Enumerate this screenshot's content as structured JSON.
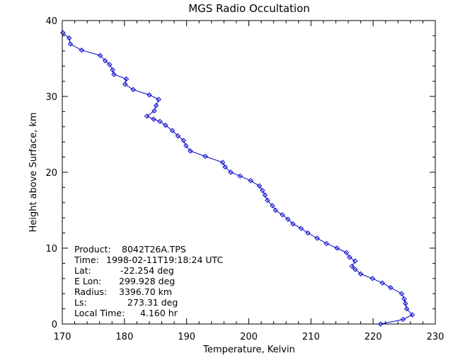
{
  "chart_data": {
    "type": "line",
    "title": "MGS Radio Occultation",
    "xlabel": "Temperature, Kelvin",
    "ylabel": "Height above Surface, km",
    "xlim": [
      170,
      230
    ],
    "ylim": [
      0,
      40
    ],
    "xticks": [
      "170",
      "180",
      "190",
      "200",
      "210",
      "220",
      "230"
    ],
    "yticks": [
      "0",
      "10",
      "20",
      "30",
      "40"
    ],
    "grid": false,
    "line_color": "#0000cc",
    "marker": "diamond",
    "points": [
      [
        221.2,
        0.0
      ],
      [
        224.8,
        0.6
      ],
      [
        226.3,
        1.2
      ],
      [
        225.4,
        2.0
      ],
      [
        225.2,
        2.7
      ],
      [
        225.0,
        3.3
      ],
      [
        224.6,
        4.0
      ],
      [
        222.8,
        4.8
      ],
      [
        221.5,
        5.4
      ],
      [
        219.9,
        6.0
      ],
      [
        218.0,
        6.6
      ],
      [
        217.1,
        7.2
      ],
      [
        216.6,
        7.6
      ],
      [
        217.1,
        8.3
      ],
      [
        216.2,
        8.8
      ],
      [
        215.7,
        9.4
      ],
      [
        214.2,
        10.0
      ],
      [
        212.5,
        10.6
      ],
      [
        211.0,
        11.3
      ],
      [
        209.5,
        12.0
      ],
      [
        208.4,
        12.6
      ],
      [
        207.1,
        13.2
      ],
      [
        206.3,
        13.8
      ],
      [
        205.4,
        14.4
      ],
      [
        204.3,
        15.0
      ],
      [
        203.8,
        15.6
      ],
      [
        203.0,
        16.3
      ],
      [
        202.6,
        17.0
      ],
      [
        202.2,
        17.6
      ],
      [
        201.7,
        18.2
      ],
      [
        200.3,
        18.9
      ],
      [
        198.6,
        19.5
      ],
      [
        197.1,
        20.0
      ],
      [
        196.2,
        20.7
      ],
      [
        195.8,
        21.3
      ],
      [
        193.0,
        22.1
      ],
      [
        190.6,
        22.8
      ],
      [
        189.9,
        23.5
      ],
      [
        189.5,
        24.2
      ],
      [
        188.6,
        24.8
      ],
      [
        187.7,
        25.5
      ],
      [
        186.6,
        26.2
      ],
      [
        185.7,
        26.7
      ],
      [
        184.7,
        27.0
      ],
      [
        183.6,
        27.4
      ],
      [
        184.8,
        28.1
      ],
      [
        185.1,
        28.8
      ],
      [
        185.5,
        29.6
      ],
      [
        184.0,
        30.2
      ],
      [
        181.4,
        30.9
      ],
      [
        180.1,
        31.6
      ],
      [
        180.3,
        32.3
      ],
      [
        178.3,
        32.9
      ],
      [
        178.1,
        33.5
      ],
      [
        177.6,
        34.2
      ],
      [
        176.9,
        34.7
      ],
      [
        176.1,
        35.4
      ],
      [
        173.1,
        36.1
      ],
      [
        171.3,
        36.9
      ],
      [
        171.1,
        37.7
      ],
      [
        170.1,
        38.4
      ]
    ]
  },
  "annotation": {
    "product_label": "Product:",
    "product_value": "8042T26A.TPS",
    "time_label": "Time:",
    "time_value": "1998-02-11T19:18:24 UTC",
    "lat_label": "Lat:",
    "lat_value": "-22.254 deg",
    "elon_label": "E Lon:",
    "elon_value": "299.928 deg",
    "radius_label": "Radius:",
    "radius_value": "3396.70 km",
    "ls_label": "Ls:",
    "ls_value": "273.31 deg",
    "localtime_label": "Local Time:",
    "localtime_value": "4.160 hr"
  }
}
